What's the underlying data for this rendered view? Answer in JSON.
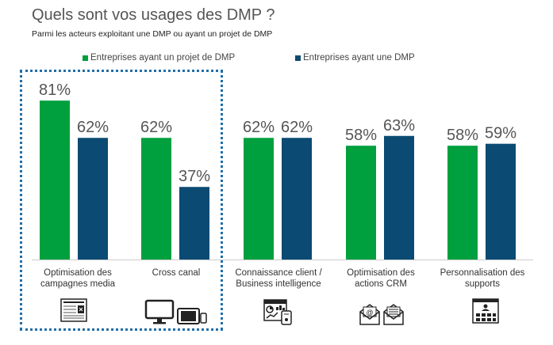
{
  "title": "Quels sont vos usages des DMP ?",
  "subtitle": "Parmi les acteurs exploitant une DMP ou ayant un projet de DMP",
  "colors": {
    "series1": "#00a03e",
    "series2": "#0b4a72",
    "highlight": "#1f6ea8"
  },
  "chart_data": {
    "type": "bar",
    "title": "Quels sont vos usages des DMP ?",
    "subtitle": "Parmi les acteurs exploitant une DMP ou ayant un projet de DMP",
    "categories": [
      [
        "Optimisation des",
        "campagnes media"
      ],
      [
        "Cross canal"
      ],
      [
        "Connaissance client /",
        "Business intelligence"
      ],
      [
        "Optimisation des",
        "actions CRM"
      ],
      [
        "Personnalisation des",
        "supports"
      ]
    ],
    "series": [
      {
        "name": "Entreprises ayant un projet de DMP",
        "values": [
          81,
          62,
          62,
          58,
          58
        ]
      },
      {
        "name": "Entreprises ayant une DMP",
        "values": [
          62,
          37,
          62,
          63,
          59
        ]
      }
    ],
    "unit": "%",
    "ylim": [
      0,
      100
    ],
    "grid": false,
    "legend": "top"
  },
  "icons": [
    "document-icon",
    "devices-icon",
    "dashboard-icon",
    "mail-icon",
    "web-page-icon"
  ]
}
